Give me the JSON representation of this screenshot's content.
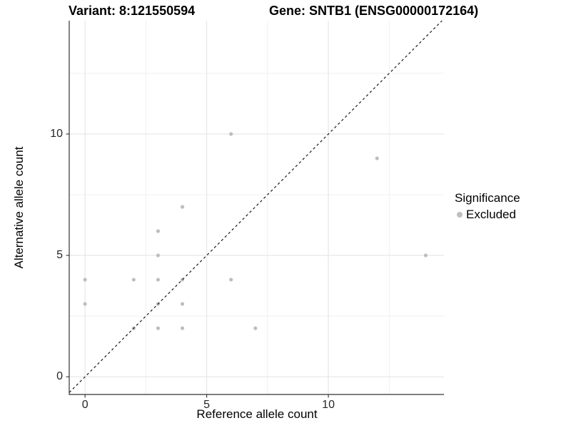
{
  "titles": {
    "variant": "Variant: 8:121550594",
    "gene": "Gene: SNTB1 (ENSG00000172164)"
  },
  "axes": {
    "x_label": "Reference allele count",
    "y_label": "Alternative allele count",
    "x_ticks": [
      0,
      5,
      10
    ],
    "y_ticks": [
      0,
      5,
      10
    ]
  },
  "legend": {
    "title": "Significance",
    "items": [
      {
        "label": "Excluded",
        "color": "#bebebe"
      }
    ]
  },
  "colors": {
    "point": "#bebebe",
    "grid_major": "#e2e2e2",
    "grid_minor": "#eeeeee",
    "axis": "#333333",
    "identity_line": "#1a1a1a",
    "background": "#ffffff"
  },
  "chart_data": {
    "type": "scatter",
    "title": "Variant: 8:121550594 — Gene: SNTB1 (ENSG00000172164)",
    "xlabel": "Reference allele count",
    "ylabel": "Alternative allele count",
    "xlim": [
      -0.65,
      14.75
    ],
    "ylim": [
      -0.73,
      14.67
    ],
    "major_ticks": [
      0,
      5,
      10
    ],
    "minor_gridlines": [
      2.5,
      7.5,
      12.5
    ],
    "grid": true,
    "legend_position": "right",
    "identity_line": {
      "show": true,
      "style": "dashed",
      "slope": 1,
      "intercept": 0
    },
    "series": [
      {
        "name": "Excluded",
        "color": "#bebebe",
        "points": [
          [
            0,
            3
          ],
          [
            0,
            4
          ],
          [
            2,
            2
          ],
          [
            2,
            4
          ],
          [
            3,
            2
          ],
          [
            3,
            3
          ],
          [
            3,
            4
          ],
          [
            3,
            5
          ],
          [
            3,
            6
          ],
          [
            4,
            2
          ],
          [
            4,
            3
          ],
          [
            4,
            4
          ],
          [
            4,
            7
          ],
          [
            6,
            4
          ],
          [
            6,
            10
          ],
          [
            7,
            2
          ],
          [
            12,
            9
          ],
          [
            14,
            5
          ]
        ]
      }
    ]
  }
}
